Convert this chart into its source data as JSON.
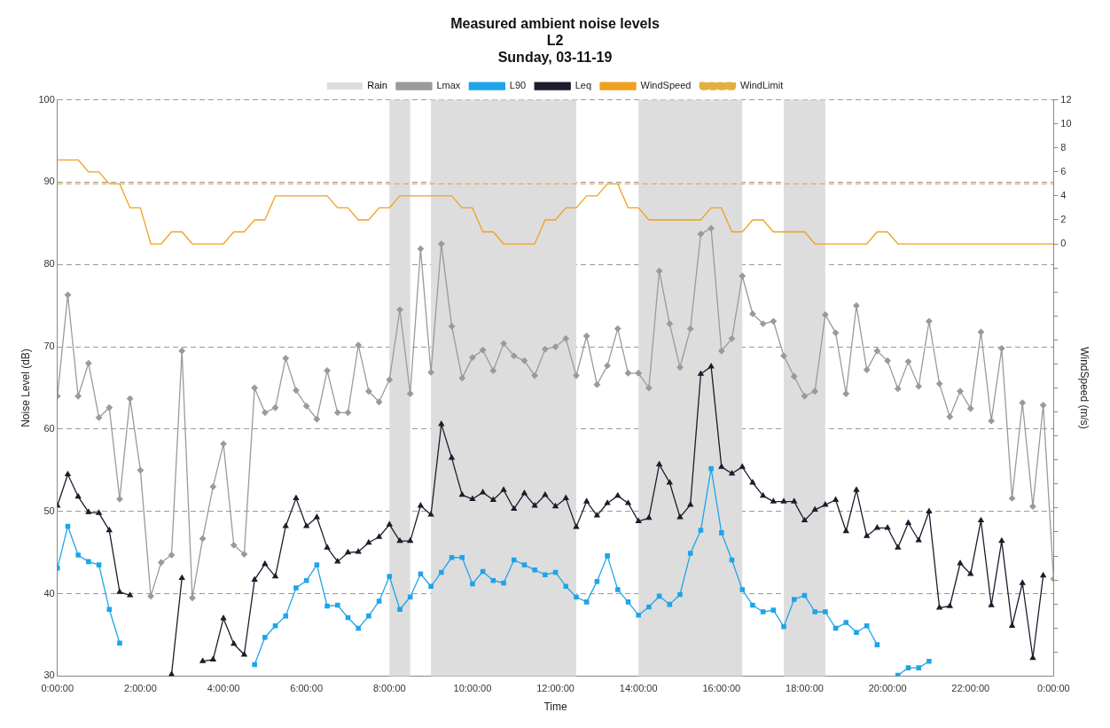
{
  "chart_data": {
    "type": "line",
    "title": "Measured ambient noise levels",
    "subtitle": "L2\nSunday, 03-11-19",
    "xlabel": "Time",
    "ylabel": "Noise Level (dB)",
    "y2label": "WindSpeed (m/s)",
    "x": [
      "--11-03T00:00",
      "--11-03T00:15",
      "--11-03T00:30",
      "--11-03T00:45",
      "--11-03T01:00",
      "--11-03T01:15",
      "--11-03T01:30",
      "--11-03T01:45",
      "--11-03T02:00",
      "--11-03T02:15",
      "--11-03T02:30",
      "--11-03T02:45",
      "--11-03T03:00",
      "--11-03T03:15",
      "--11-03T03:30",
      "--11-03T03:45",
      "--11-03T04:00",
      "--11-03T04:15",
      "--11-03T04:30",
      "--11-03T04:45",
      "--11-03T05:00",
      "--11-03T05:15",
      "--11-03T05:30",
      "--11-03T05:45",
      "--11-03T06:00",
      "--11-03T06:15",
      "--11-03T06:30",
      "--11-03T06:45",
      "--11-03T07:00",
      "--11-03T07:15",
      "--11-03T07:30",
      "--11-03T07:45",
      "--11-03T08:00",
      "--11-03T08:15",
      "--11-03T08:30",
      "--11-03T08:45",
      "--11-03T09:00",
      "--11-03T09:15",
      "--11-03T09:30",
      "--11-03T09:45",
      "--11-03T10:00",
      "--11-03T10:15",
      "--11-03T10:30",
      "--11-03T10:45",
      "--11-03T11:00",
      "--11-03T11:15",
      "--11-03T11:30",
      "--11-03T11:45",
      "--11-03T12:00",
      "--11-03T12:15",
      "--11-03T12:30",
      "--11-03T12:45",
      "--11-03T13:00",
      "--11-03T13:15",
      "--11-03T13:30",
      "--11-03T13:45",
      "--11-03T14:00",
      "--11-03T14:15",
      "--11-03T14:30",
      "--11-03T14:45",
      "--11-03T15:00",
      "--11-03T15:15",
      "--11-03T15:30",
      "--11-03T15:45",
      "--11-03T16:00",
      "--11-03T16:15",
      "--11-03T16:30",
      "--11-03T16:45",
      "--11-03T17:00",
      "--11-03T17:15",
      "--11-03T17:30",
      "--11-03T17:45",
      "--11-03T18:00",
      "--11-03T18:15",
      "--11-03T18:30",
      "--11-03T18:45",
      "--11-03T19:00",
      "--11-03T19:15",
      "--11-03T19:30",
      "--11-03T19:45",
      "--11-03T20:00",
      "--11-03T20:15",
      "--11-03T20:30",
      "--11-03T20:45",
      "--11-03T21:00",
      "--11-03T21:15",
      "--11-03T21:30",
      "--11-03T21:45",
      "--11-03T22:00",
      "--11-03T22:15",
      "--11-03T22:30",
      "--11-03T22:45",
      "--11-03T23:00",
      "--11-03T23:15",
      "--11-03T23:30",
      "--11-03T23:45",
      "--11-04T00:00"
    ],
    "series": [
      {
        "name": "Lmax",
        "color": "#9a9a9a",
        "marker": "diamond",
        "values": [
          64,
          76.3,
          64,
          68,
          61.4,
          62.6,
          51.5,
          63.7,
          55,
          39.7,
          43.8,
          44.7,
          69.5,
          39.5,
          46.7,
          53,
          58.2,
          45.9,
          44.8,
          65,
          62,
          62.6,
          68.6,
          64.7,
          62.8,
          61.2,
          67.1,
          62,
          62,
          70.2,
          64.6,
          63.3,
          66,
          74.5,
          64.3,
          81.9,
          66.9,
          82.5,
          72.5,
          66.2,
          68.7,
          69.6,
          67.1,
          70.4,
          68.9,
          68.3,
          66.5,
          69.7,
          70,
          71,
          66.5,
          71.3,
          65.4,
          67.7,
          72.2,
          66.8,
          66.8,
          65,
          79.2,
          72.8,
          67.5,
          72.2,
          83.7,
          84.4,
          69.5,
          71,
          78.6,
          74,
          72.8,
          73.1,
          68.9,
          66.4,
          64,
          64.6,
          73.9,
          71.7,
          64.3,
          75,
          67.2,
          69.5,
          68.3,
          64.9,
          68.2,
          65.2,
          73.1,
          65.5,
          61.5,
          64.6,
          62.5,
          71.8,
          61,
          69.8,
          51.6,
          63.2,
          50.6,
          62.9,
          41.8
        ]
      },
      {
        "name": "L90",
        "color": "#1ea4e9",
        "marker": "square",
        "values": [
          43.1,
          48.2,
          44.7,
          43.9,
          43.5,
          38.1,
          34,
          null,
          null,
          null,
          null,
          null,
          null,
          null,
          null,
          null,
          null,
          null,
          null,
          31.4,
          34.7,
          36.1,
          37.3,
          40.7,
          41.6,
          43.5,
          38.5,
          38.6,
          37.1,
          35.8,
          37.3,
          39.1,
          42.1,
          38.1,
          39.6,
          42.4,
          40.9,
          42.6,
          44.4,
          44.4,
          41.2,
          42.7,
          41.6,
          41.3,
          44.1,
          43.5,
          42.9,
          42.3,
          42.6,
          40.9,
          39.6,
          39,
          41.5,
          44.6,
          40.5,
          39,
          37.4,
          38.4,
          39.7,
          38.7,
          39.9,
          44.9,
          47.7,
          55.2,
          47.4,
          44.1,
          40.5,
          38.6,
          37.8,
          38,
          36,
          39.3,
          39.8,
          37.8,
          37.8,
          35.8,
          36.5,
          35.3,
          36.1,
          33.8,
          null,
          30.1,
          31,
          31,
          31.8,
          null,
          null,
          null,
          null,
          null,
          null,
          null,
          null,
          null,
          null,
          null,
          null
        ]
      },
      {
        "name": "Leq",
        "color": "#1c1c2c",
        "marker": "triangle",
        "values": [
          50.7,
          54.5,
          51.8,
          49.9,
          49.8,
          47.7,
          40.2,
          39.8,
          null,
          null,
          null,
          30.2,
          41.9,
          null,
          31.8,
          32,
          37,
          33.9,
          32.6,
          41.7,
          43.6,
          42.1,
          48.2,
          51.6,
          48.2,
          49.3,
          45.6,
          43.9,
          45,
          45.1,
          46.2,
          46.9,
          48.4,
          46.4,
          46.4,
          50.7,
          49.6,
          60.6,
          56.5,
          52,
          51.5,
          52.3,
          51.4,
          52.6,
          50.3,
          52.2,
          50.7,
          52,
          50.6,
          51.6,
          48.1,
          51.2,
          49.5,
          51,
          51.9,
          51,
          48.8,
          49.2,
          55.7,
          53.5,
          49.3,
          50.8,
          66.7,
          67.6,
          55.4,
          54.6,
          55.4,
          53.5,
          51.9,
          51.2,
          51.2,
          51.2,
          48.9,
          50.2,
          50.8,
          51.4,
          47.6,
          52.6,
          47,
          48,
          48,
          45.6,
          48.6,
          46.5,
          50,
          38.3,
          38.5,
          43.7,
          42.4,
          48.9,
          38.6,
          46.4,
          36.1,
          41.3,
          32.2,
          42.2,
          null
        ]
      },
      {
        "name": "WindSpeed",
        "color": "#f0a020",
        "marker": "none",
        "axis": "y2",
        "values": [
          7,
          7,
          7,
          6,
          6,
          5,
          5,
          3,
          3,
          0,
          0,
          1,
          1,
          0,
          0,
          0,
          0,
          1,
          1,
          2,
          2,
          4,
          4,
          4,
          4,
          4,
          4,
          3,
          3,
          2,
          2,
          3,
          3,
          4,
          4,
          4,
          4,
          4,
          4,
          3,
          3,
          1,
          1,
          0,
          0,
          0,
          0,
          2,
          2,
          3,
          3,
          4,
          4,
          5,
          5,
          3,
          3,
          2,
          2,
          2,
          2,
          2,
          2,
          3,
          3,
          1,
          1,
          2,
          2,
          1,
          1,
          1,
          1,
          0,
          0,
          0,
          0,
          0,
          0,
          1,
          1,
          0,
          0,
          0,
          0,
          0,
          0,
          0,
          0,
          0,
          0,
          0,
          0,
          0,
          0,
          0,
          0
        ]
      },
      {
        "name": "WindLimit",
        "color": "#e2b040",
        "marker": "none",
        "line_style": "dashed",
        "axis": "y2",
        "values": [
          5,
          5,
          5,
          5,
          5,
          5,
          5,
          5,
          5,
          5,
          5,
          5,
          5,
          5,
          5,
          5,
          5,
          5,
          5,
          5,
          5,
          5,
          5,
          5,
          5,
          5,
          5,
          5,
          5,
          5,
          5,
          5,
          5,
          5,
          5,
          5,
          5,
          5,
          5,
          5,
          5,
          5,
          5,
          5,
          5,
          5,
          5,
          5,
          5,
          5,
          5,
          5,
          5,
          5,
          5,
          5,
          5,
          5,
          5,
          5,
          5,
          5,
          5,
          5,
          5,
          5,
          5,
          5,
          5,
          5,
          5,
          5,
          5,
          5,
          5,
          5,
          5,
          5,
          5,
          5,
          5,
          5,
          5,
          5,
          5,
          5,
          5,
          5,
          5,
          5,
          5,
          5,
          5,
          5,
          5,
          5,
          5
        ]
      }
    ],
    "bands": [
      {
        "axis": "x",
        "from": "--11-03T08:00",
        "to": "--11-03T08:30",
        "label": "Rain",
        "color": "#dddddd"
      },
      {
        "axis": "x",
        "from": "--11-03T09:00",
        "to": "--11-03T12:30",
        "color": "#dddddd"
      },
      {
        "axis": "x",
        "from": "--11-03T14:00",
        "to": "--11-03T16:30",
        "color": "#dddddd"
      },
      {
        "axis": "x",
        "from": "--11-03T17:30",
        "to": "--11-03T18:30",
        "color": "#dddddd"
      }
    ],
    "xlim": [
      "--11-03T00:00",
      "--11-04T00:00"
    ],
    "xticks": [
      {
        "value": "--11-03T00:00",
        "label": "0:00:00"
      },
      {
        "value": "--11-03T02:00",
        "label": "2:00:00"
      },
      {
        "value": "--11-03T04:00",
        "label": "4:00:00"
      },
      {
        "value": "--11-03T06:00",
        "label": "6:00:00"
      },
      {
        "value": "--11-03T08:00",
        "label": "8:00:00"
      },
      {
        "value": "--11-03T10:00",
        "label": "10:00:00"
      },
      {
        "value": "--11-03T12:00",
        "label": "12:00:00"
      },
      {
        "value": "--11-03T14:00",
        "label": "14:00:00"
      },
      {
        "value": "--11-03T16:00",
        "label": "16:00:00"
      },
      {
        "value": "--11-03T18:00",
        "label": "18:00:00"
      },
      {
        "value": "--11-03T20:00",
        "label": "20:00:00"
      },
      {
        "value": "--11-03T22:00",
        "label": "22:00:00"
      },
      {
        "value": "--11-04T00:00",
        "label": "0:00:00"
      }
    ],
    "ylim": [
      30,
      100
    ],
    "yticks": [
      30,
      40,
      50,
      60,
      70,
      80,
      90,
      100
    ],
    "y2lim": [
      -36,
      12
    ],
    "y2ticks": [
      0,
      2,
      4,
      6,
      8,
      10,
      12,
      {
        "value": -2,
        "label": null
      },
      {
        "value": -4,
        "label": null
      },
      {
        "value": -6,
        "label": null
      },
      {
        "value": -8,
        "label": null
      },
      {
        "value": -10,
        "label": null
      },
      {
        "value": -12,
        "label": null
      },
      {
        "value": -14,
        "label": null
      },
      {
        "value": -16,
        "label": null
      },
      {
        "value": -18,
        "label": null
      },
      {
        "value": -20,
        "label": null
      },
      {
        "value": -22,
        "label": null
      },
      {
        "value": -24,
        "label": null
      },
      {
        "value": -26,
        "label": null
      },
      {
        "value": -28,
        "label": null
      },
      {
        "value": -30,
        "label": null
      },
      {
        "value": -32,
        "label": null
      },
      {
        "value": -34,
        "label": null
      }
    ],
    "grid": "y",
    "legend": "top"
  }
}
